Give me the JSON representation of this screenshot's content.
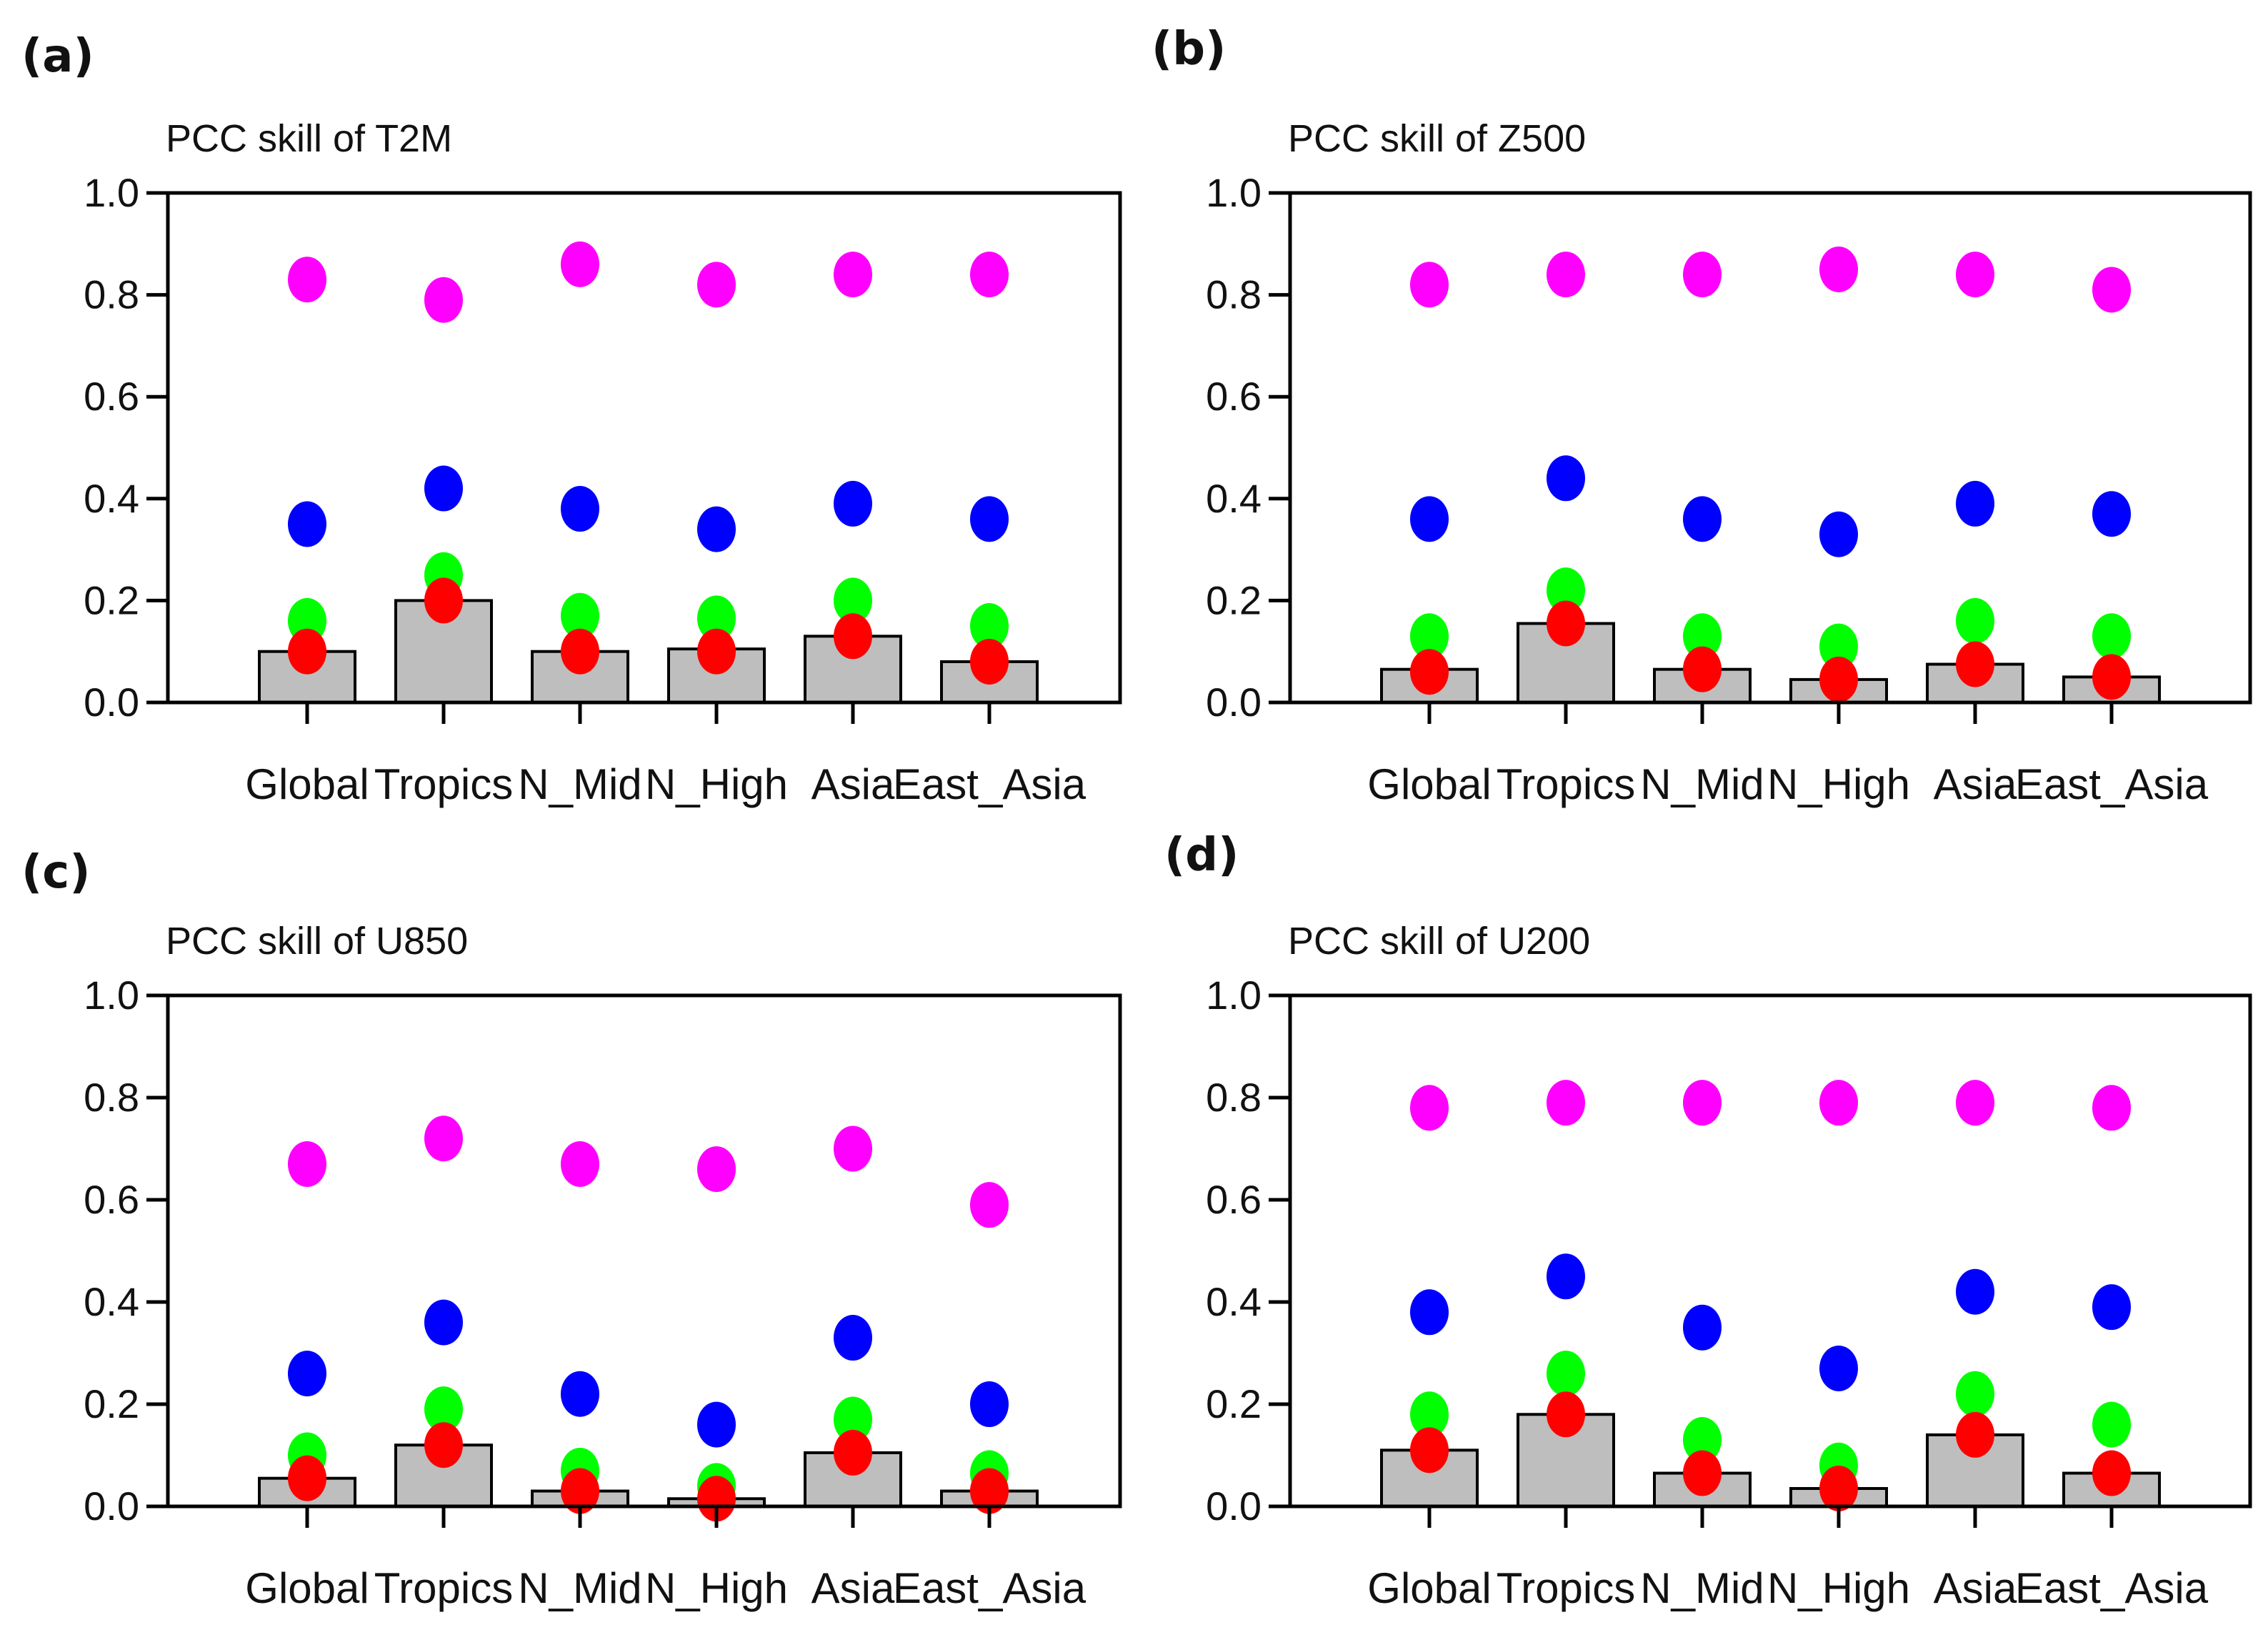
{
  "categories": [
    "Global",
    "Tropics",
    "N_Mid",
    "N_High",
    "Asia",
    "East_Asia"
  ],
  "y_ticks": [
    "0.0",
    "0.2",
    "0.4",
    "0.6",
    "0.8",
    "1.0"
  ],
  "colors": {
    "bar": "#bebebe",
    "magenta": "#ff00ff",
    "blue": "#0000ff",
    "green": "#00ff00",
    "red": "#ff0000"
  },
  "chart_data": [
    {
      "type": "bar",
      "panel": "(a)",
      "title": "PCC skill of T2M",
      "categories": [
        "Global",
        "Tropics",
        "N_Mid",
        "N_High",
        "Asia",
        "East_Asia"
      ],
      "ylim": [
        0,
        1
      ],
      "bars": [
        0.1,
        0.2,
        0.1,
        0.105,
        0.13,
        0.08
      ],
      "dots": {
        "magenta": [
          0.83,
          0.79,
          0.86,
          0.82,
          0.84,
          0.84
        ],
        "blue": [
          0.35,
          0.42,
          0.38,
          0.34,
          0.39,
          0.36
        ],
        "green": [
          0.16,
          0.25,
          0.17,
          0.165,
          0.2,
          0.15
        ],
        "red": [
          0.1,
          0.2,
          0.1,
          0.1,
          0.13,
          0.08
        ]
      }
    },
    {
      "type": "bar",
      "panel": "(b)",
      "title": "PCC skill of Z500",
      "categories": [
        "Global",
        "Tropics",
        "N_Mid",
        "N_High",
        "Asia",
        "East_Asia"
      ],
      "ylim": [
        0,
        1
      ],
      "bars": [
        0.065,
        0.155,
        0.065,
        0.045,
        0.075,
        0.05
      ],
      "dots": {
        "magenta": [
          0.82,
          0.84,
          0.84,
          0.85,
          0.84,
          0.81
        ],
        "blue": [
          0.36,
          0.44,
          0.36,
          0.33,
          0.39,
          0.37
        ],
        "green": [
          0.13,
          0.22,
          0.13,
          0.11,
          0.16,
          0.13
        ],
        "red": [
          0.06,
          0.155,
          0.065,
          0.045,
          0.075,
          0.05
        ]
      }
    },
    {
      "type": "bar",
      "panel": "(c)",
      "title": "PCC skill of U850",
      "categories": [
        "Global",
        "Tropics",
        "N_Mid",
        "N_High",
        "Asia",
        "East_Asia"
      ],
      "ylim": [
        0,
        1
      ],
      "bars": [
        0.055,
        0.12,
        0.03,
        0.015,
        0.105,
        0.03
      ],
      "dots": {
        "magenta": [
          0.67,
          0.72,
          0.67,
          0.66,
          0.7,
          0.59
        ],
        "blue": [
          0.26,
          0.36,
          0.22,
          0.16,
          0.33,
          0.2
        ],
        "green": [
          0.1,
          0.19,
          0.07,
          0.04,
          0.17,
          0.065
        ],
        "red": [
          0.055,
          0.12,
          0.03,
          0.015,
          0.105,
          0.03
        ]
      }
    },
    {
      "type": "bar",
      "panel": "(d)",
      "title": "PCC skill of U200",
      "categories": [
        "Global",
        "Tropics",
        "N_Mid",
        "N_High",
        "Asia",
        "East_Asia"
      ],
      "ylim": [
        0,
        1
      ],
      "bars": [
        0.11,
        0.18,
        0.065,
        0.035,
        0.14,
        0.065
      ],
      "dots": {
        "magenta": [
          0.78,
          0.79,
          0.79,
          0.79,
          0.79,
          0.78
        ],
        "blue": [
          0.38,
          0.45,
          0.35,
          0.27,
          0.42,
          0.39
        ],
        "green": [
          0.18,
          0.26,
          0.13,
          0.08,
          0.22,
          0.16
        ],
        "red": [
          0.11,
          0.18,
          0.065,
          0.035,
          0.14,
          0.065
        ]
      }
    }
  ]
}
